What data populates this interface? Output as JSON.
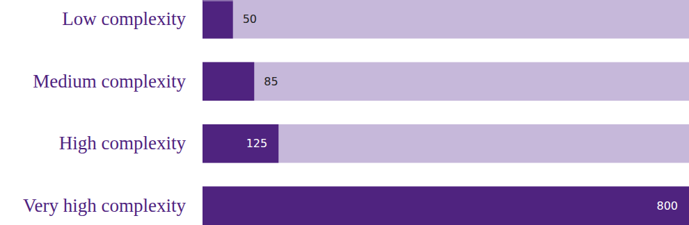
{
  "chart_data": {
    "type": "bar",
    "orientation": "horizontal",
    "categories": [
      "Low complexity",
      "Medium complexity",
      "High complexity",
      "Very high complexity"
    ],
    "values": [
      50,
      85,
      125,
      800
    ],
    "color": "#4f237f",
    "xlim": [
      0,
      800
    ],
    "grid": false,
    "data_labels": true,
    "tick_labels": "y"
  }
}
